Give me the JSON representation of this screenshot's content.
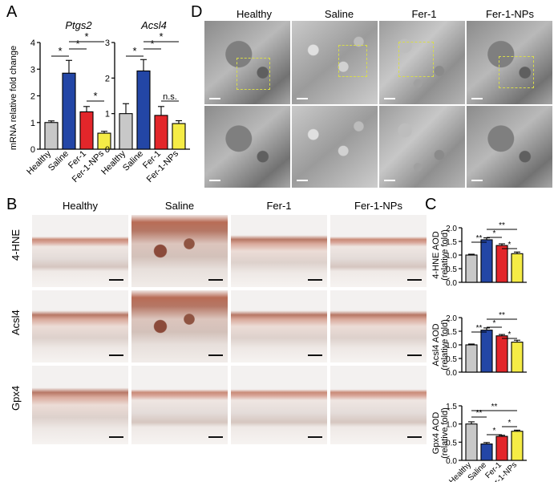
{
  "panels": {
    "A": "A",
    "B": "B",
    "C": "C",
    "D": "D"
  },
  "colors": {
    "healthy": "#c8c8c8",
    "saline": "#2346a6",
    "fer1": "#e3262a",
    "fer1nps": "#f5ec46",
    "scale_bar": "#111111",
    "roi_dashes": "#d8dc4a"
  },
  "groups": [
    "Healthy",
    "Saline",
    "Fer-1",
    "Fer-1-NPs"
  ],
  "panelA": {
    "ylabel": "mRNA relative fold change",
    "charts": [
      {
        "title": "Ptgs2",
        "ticks": [
          "0",
          "1",
          "2",
          "3",
          "4"
        ],
        "sig": [
          {
            "text": "*"
          },
          {
            "text": "*"
          },
          {
            "text": "*"
          },
          {
            "text": "*"
          }
        ]
      },
      {
        "title": "Acsl4",
        "ticks": [
          "0",
          "1",
          "2",
          "3"
        ],
        "sig": [
          {
            "text": "*"
          },
          {
            "text": "*"
          },
          {
            "text": "*"
          },
          {
            "text": "n.s."
          }
        ]
      }
    ]
  },
  "panelB": {
    "columns": [
      "Healthy",
      "Saline",
      "Fer-1",
      "Fer-1-NPs"
    ],
    "rows": [
      "4-HNE",
      "Acsl4",
      "Gpx4"
    ],
    "image_alt": "Immunohistochemistry section"
  },
  "panelC": {
    "charts": [
      {
        "ylabel1": "4-HNE AOD",
        "ylabel2": "(relative fold)",
        "ticks": [
          "0.0",
          "0.5",
          "1.0",
          "1.5",
          "2.0"
        ],
        "sig": [
          "**",
          "*",
          "**",
          "*",
          "*"
        ]
      },
      {
        "ylabel1": "Acsl4 AOD",
        "ylabel2": "(relative fold)",
        "ticks": [
          "0.0",
          "0.5",
          "1.0",
          "1.5",
          "2.0"
        ],
        "sig": [
          "**",
          "*",
          "**",
          "*",
          "*"
        ]
      },
      {
        "ylabel1": "Gpx4 AOD",
        "ylabel2": "(relative fold)",
        "ticks": [
          "0.0",
          "0.5",
          "1.0",
          "1.5"
        ],
        "sig": [
          "**",
          "**",
          "*",
          "*"
        ]
      }
    ]
  },
  "panelD": {
    "columns": [
      "Healthy",
      "Saline",
      "Fer-1",
      "Fer-1-NPs"
    ],
    "image_alt": "Transmission electron micrograph"
  },
  "chart_data": [
    {
      "type": "bar",
      "title": "Ptgs2",
      "ylabel": "mRNA relative fold change",
      "categories": [
        "Healthy",
        "Saline",
        "Fer-1",
        "Fer-1-NPs"
      ],
      "values": [
        1.0,
        2.85,
        1.4,
        0.6
      ],
      "errors": [
        0.06,
        0.48,
        0.2,
        0.07
      ],
      "ylim": [
        0,
        4
      ]
    },
    {
      "type": "bar",
      "title": "Acsl4",
      "ylabel": "",
      "categories": [
        "Healthy",
        "Saline",
        "Fer-1",
        "Fer-1-NPs"
      ],
      "values": [
        1.0,
        2.2,
        0.95,
        0.72
      ],
      "errors": [
        0.28,
        0.32,
        0.25,
        0.08
      ],
      "ylim": [
        0,
        3
      ]
    },
    {
      "type": "bar",
      "title": "",
      "ylabel": "4-HNE AOD (relative fold)",
      "categories": [
        "Healthy",
        "Saline",
        "Fer-1",
        "Fer-1-NPs"
      ],
      "values": [
        1.0,
        1.56,
        1.35,
        1.05
      ],
      "errors": [
        0.03,
        0.07,
        0.06,
        0.06
      ],
      "ylim": [
        0,
        2
      ]
    },
    {
      "type": "bar",
      "title": "",
      "ylabel": "Acsl4 AOD (relative fold)",
      "categories": [
        "Healthy",
        "Saline",
        "Fer-1",
        "Fer-1-NPs"
      ],
      "values": [
        1.0,
        1.54,
        1.33,
        1.1
      ],
      "errors": [
        0.03,
        0.08,
        0.05,
        0.07
      ],
      "ylim": [
        0,
        2
      ]
    },
    {
      "type": "bar",
      "title": "",
      "ylabel": "Gpx4 AOD (relative fold)",
      "categories": [
        "Healthy",
        "Saline",
        "Fer-1",
        "Fer-1-NPs"
      ],
      "values": [
        1.0,
        0.45,
        0.66,
        0.8
      ],
      "errors": [
        0.06,
        0.04,
        0.03,
        0.03
      ],
      "ylim": [
        0,
        1.5
      ]
    }
  ]
}
